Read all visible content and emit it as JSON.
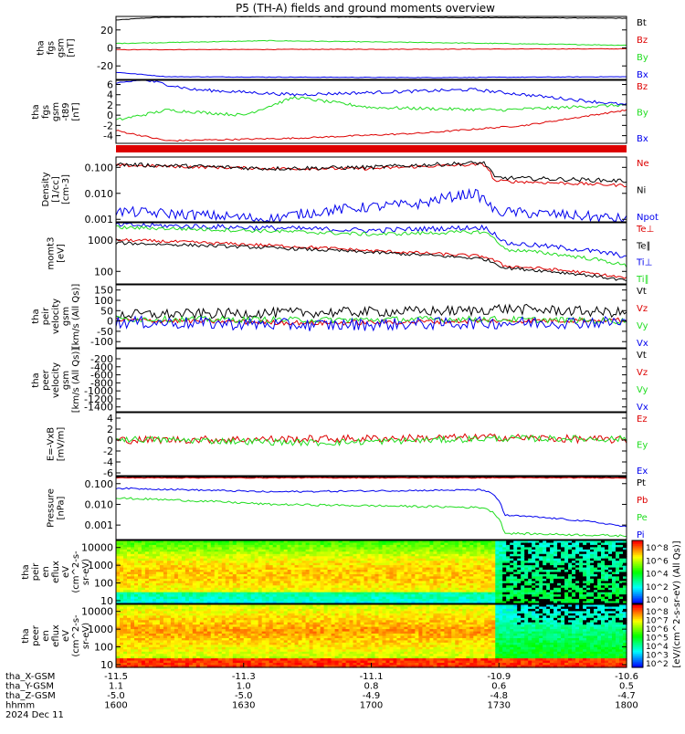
{
  "title": "P5 (TH-A) fields and ground moments overview",
  "colors": {
    "black": "#000000",
    "red": "#dd0000",
    "green": "#22dd22",
    "blue": "#0000ee"
  },
  "chart_data": [
    {
      "type": "line",
      "ylabel_lines": [
        "tha",
        "fgs",
        "gsm",
        "[nT]"
      ],
      "ylim": [
        -35,
        35
      ],
      "yticks": [
        {
          "v": 20,
          "t": "20"
        },
        {
          "v": 0,
          "t": "0"
        },
        {
          "v": -20,
          "t": "-20"
        }
      ],
      "series": [
        {
          "name": "Bt",
          "color": "black",
          "noise": 0.3,
          "levels": [
            [
              0,
              31
            ],
            [
              0.08,
              34
            ],
            [
              0.3,
              35
            ],
            [
              0.6,
              34
            ],
            [
              1,
              33
            ]
          ]
        },
        {
          "name": "Bz",
          "color": "red",
          "noise": 0.3,
          "levels": [
            [
              0,
              -2
            ],
            [
              0.5,
              -1.5
            ],
            [
              1,
              -1
            ]
          ]
        },
        {
          "name": "By",
          "color": "green",
          "noise": 0.4,
          "levels": [
            [
              0,
              5
            ],
            [
              0.3,
              8
            ],
            [
              0.6,
              6
            ],
            [
              1,
              3
            ]
          ]
        },
        {
          "name": "Bx",
          "color": "blue",
          "noise": 0.3,
          "levels": [
            [
              0,
              -27
            ],
            [
              0.1,
              -32
            ],
            [
              0.6,
              -33
            ],
            [
              1,
              -32
            ]
          ]
        }
      ]
    },
    {
      "type": "line",
      "ylabel_lines": [
        "tha",
        "fgs",
        "gsm",
        "-t89",
        "[nT]"
      ],
      "ylim": [
        -5.5,
        6.8
      ],
      "yticks": [
        {
          "v": 6,
          "t": "6"
        },
        {
          "v": 4,
          "t": "4"
        },
        {
          "v": 2,
          "t": "2"
        },
        {
          "v": 0,
          "t": "0"
        },
        {
          "v": -2,
          "t": "-2"
        },
        {
          "v": -4,
          "t": "-4"
        }
      ],
      "series": [
        {
          "name": "Bz",
          "color": "red",
          "noise": 0.15,
          "levels": [
            [
              0,
              -3
            ],
            [
              0.1,
              -5
            ],
            [
              0.35,
              -4.5
            ],
            [
              0.6,
              -3.5
            ],
            [
              0.8,
              -2
            ],
            [
              1,
              1
            ]
          ]
        },
        {
          "name": "By",
          "color": "green",
          "noise": 0.3,
          "levels": [
            [
              0,
              -1
            ],
            [
              0.1,
              1
            ],
            [
              0.25,
              0
            ],
            [
              0.35,
              3.5
            ],
            [
              0.5,
              1.5
            ],
            [
              0.75,
              1
            ],
            [
              1,
              2
            ]
          ]
        },
        {
          "name": "Bx",
          "color": "blue",
          "noise": 0.3,
          "levels": [
            [
              0,
              6
            ],
            [
              0.05,
              7
            ],
            [
              0.15,
              5
            ],
            [
              0.35,
              4
            ],
            [
              0.7,
              5
            ],
            [
              1,
              2
            ]
          ]
        }
      ]
    },
    {
      "type": "line",
      "log": true,
      "ylabel_lines": [
        "Density",
        "[1/cc]",
        "[cm-3]"
      ],
      "ylim": [
        0.0008,
        0.25
      ],
      "yticks": [
        {
          "v": 0.1,
          "t": "0.100"
        },
        {
          "v": 0.01,
          "t": "0.010"
        },
        {
          "v": 0.001,
          "t": "0.001"
        }
      ],
      "series": [
        {
          "name": "Ne",
          "color": "red",
          "noise": 0.06,
          "levels": [
            [
              0,
              0.12
            ],
            [
              0.3,
              0.09
            ],
            [
              0.5,
              0.09
            ],
            [
              0.72,
              0.13
            ],
            [
              0.74,
              0.03
            ],
            [
              1,
              0.02
            ]
          ]
        },
        {
          "name": "Ni",
          "color": "black",
          "noise": 0.08,
          "levels": [
            [
              0,
              0.13
            ],
            [
              0.3,
              0.09
            ],
            [
              0.5,
              0.1
            ],
            [
              0.72,
              0.15
            ],
            [
              0.74,
              0.04
            ],
            [
              1,
              0.03
            ]
          ]
        },
        {
          "name": "Npot",
          "color": "blue",
          "noise": 0.2,
          "levels": [
            [
              0,
              0.002
            ],
            [
              0.3,
              0.001
            ],
            [
              0.6,
              0.004
            ],
            [
              0.7,
              0.01
            ],
            [
              0.74,
              0.002
            ],
            [
              1,
              0.001
            ]
          ]
        }
      ]
    },
    {
      "type": "line",
      "log": true,
      "ylabel_lines": [
        "momt3",
        "[eV]"
      ],
      "ylim": [
        40,
        3500
      ],
      "yticks": [
        {
          "v": 1000,
          "t": "1000"
        },
        {
          "v": 100,
          "t": "100"
        }
      ],
      "series": [
        {
          "name": "Te⊥",
          "color": "red",
          "noise": 0.05,
          "levels": [
            [
              0,
              1000
            ],
            [
              0.5,
              450
            ],
            [
              0.72,
              300
            ],
            [
              0.76,
              150
            ],
            [
              1,
              60
            ]
          ]
        },
        {
          "name": "Te∥",
          "color": "black",
          "noise": 0.05,
          "levels": [
            [
              0,
              800
            ],
            [
              0.5,
              400
            ],
            [
              0.72,
              250
            ],
            [
              0.76,
              130
            ],
            [
              1,
              50
            ]
          ]
        },
        {
          "name": "Ti⊥",
          "color": "blue",
          "noise": 0.08,
          "levels": [
            [
              0,
              3000
            ],
            [
              0.5,
              2000
            ],
            [
              0.72,
              2500
            ],
            [
              0.76,
              800
            ],
            [
              1,
              300
            ]
          ]
        },
        {
          "name": "Ti∥",
          "color": "green",
          "noise": 0.06,
          "levels": [
            [
              0,
              2500
            ],
            [
              0.5,
              1500
            ],
            [
              0.72,
              1800
            ],
            [
              0.76,
              500
            ],
            [
              1,
              150
            ]
          ]
        }
      ]
    },
    {
      "type": "line",
      "ylabel_lines": [
        "tha",
        "peir",
        "velocity",
        "gsm",
        "[km/s (All Qs)]"
      ],
      "ylim": [
        -130,
        175
      ],
      "yticks": [
        {
          "v": 150,
          "t": "150"
        },
        {
          "v": 100,
          "t": "100"
        },
        {
          "v": 50,
          "t": "50"
        },
        {
          "v": 0,
          "t": "0"
        },
        {
          "v": -50,
          "t": "-50"
        },
        {
          "v": -100,
          "t": "-100"
        }
      ],
      "series": [
        {
          "name": "Vt",
          "color": "black",
          "noise": 25,
          "levels": [
            [
              0,
              30
            ],
            [
              0.7,
              50
            ],
            [
              0.75,
              60
            ],
            [
              1,
              40
            ]
          ]
        },
        {
          "name": "Vz",
          "color": "red",
          "noise": 12,
          "levels": [
            [
              0,
              5
            ],
            [
              0.4,
              -10
            ],
            [
              0.7,
              0
            ],
            [
              1,
              5
            ]
          ]
        },
        {
          "name": "Vy",
          "color": "green",
          "noise": 15,
          "levels": [
            [
              0,
              10
            ],
            [
              0.4,
              5
            ],
            [
              0.7,
              10
            ],
            [
              1,
              0
            ]
          ]
        },
        {
          "name": "Vx",
          "color": "blue",
          "noise": 30,
          "levels": [
            [
              0,
              -5
            ],
            [
              0.4,
              -20
            ],
            [
              0.7,
              -10
            ],
            [
              1,
              -5
            ]
          ]
        }
      ]
    },
    {
      "type": "line",
      "ylabel_lines": [
        "tha",
        "peer",
        "velocity",
        "gsm",
        "[km/s (All Qs)]"
      ],
      "ylim": [
        -1520,
        50
      ],
      "yticks": [
        {
          "v": -200,
          "t": "-200"
        },
        {
          "v": -400,
          "t": "-400"
        },
        {
          "v": -600,
          "t": "-600"
        },
        {
          "v": -800,
          "t": "-800"
        },
        {
          "v": -1000,
          "t": "-1000"
        },
        {
          "v": -1200,
          "t": "-1200"
        },
        {
          "v": -1400,
          "t": "-1400"
        }
      ],
      "series": [
        {
          "name": "Vt",
          "color": "black",
          "levels": []
        },
        {
          "name": "Vz",
          "color": "red",
          "levels": []
        },
        {
          "name": "Vy",
          "color": "green",
          "levels": []
        },
        {
          "name": "Vx",
          "color": "blue",
          "levels": []
        }
      ]
    },
    {
      "type": "line",
      "ylabel_lines": [
        "E=-VxB",
        "[mV/m]"
      ],
      "ylim": [
        -6.5,
        5
      ],
      "yticks": [
        {
          "v": 4,
          "t": "4"
        },
        {
          "v": 2,
          "t": "2"
        },
        {
          "v": 0,
          "t": "0"
        },
        {
          "v": -2,
          "t": "-2"
        },
        {
          "v": -4,
          "t": "-4"
        },
        {
          "v": -6,
          "t": "-6"
        }
      ],
      "series": [
        {
          "name": "Ez",
          "color": "red",
          "noise": 0.7,
          "levels": [
            [
              0,
              0
            ],
            [
              0.4,
              0.2
            ],
            [
              0.75,
              0.5
            ],
            [
              1,
              0
            ]
          ]
        },
        {
          "name": "Ey",
          "color": "green",
          "noise": 0.6,
          "levels": [
            [
              0,
              0.2
            ],
            [
              0.4,
              -0.5
            ],
            [
              0.75,
              0.3
            ],
            [
              1,
              0.2
            ]
          ]
        },
        {
          "name": "Ex",
          "color": "blue",
          "levels": []
        }
      ]
    },
    {
      "type": "line",
      "log": true,
      "ylabel_lines": [
        "Pressure",
        "[nPa]"
      ],
      "ylim": [
        0.0002,
        0.22
      ],
      "yticks": [
        {
          "v": 0.1,
          "t": "0.100"
        },
        {
          "v": 0.01,
          "t": "0.010"
        },
        {
          "v": 0.001,
          "t": "0.001"
        }
      ],
      "series": [
        {
          "name": "Pt",
          "color": "black",
          "noise": 0.02,
          "levels": [
            [
              0,
              0.2
            ],
            [
              1,
              0.2
            ]
          ]
        },
        {
          "name": "Pb",
          "color": "red",
          "noise": 0.02,
          "levels": [
            [
              0,
              0.19
            ],
            [
              1,
              0.19
            ]
          ]
        },
        {
          "name": "Pe",
          "color": "green",
          "noise": 0.05,
          "levels": [
            [
              0,
              0.02
            ],
            [
              0.3,
              0.01
            ],
            [
              0.72,
              0.007
            ],
            [
              0.76,
              0.0004
            ],
            [
              1,
              0.0003
            ]
          ]
        },
        {
          "name": "Pi",
          "color": "blue",
          "noise": 0.04,
          "levels": [
            [
              0,
              0.06
            ],
            [
              0.3,
              0.04
            ],
            [
              0.72,
              0.05
            ],
            [
              0.76,
              0.003
            ],
            [
              1,
              0.0008
            ]
          ]
        }
      ]
    },
    {
      "type": "heatmap",
      "ylabel_lines": [
        "tha",
        "peir",
        "en",
        "eflux",
        "eV",
        "(cm^2-s-",
        "sr-eV)"
      ],
      "log": true,
      "ylim": [
        7,
        25000
      ],
      "yticks": [
        {
          "v": 10000,
          "t": "10000"
        },
        {
          "v": 1000,
          "t": "1000"
        },
        {
          "v": 100,
          "t": "100"
        },
        {
          "v": 10,
          "t": "10"
        }
      ],
      "kind": "ion"
    },
    {
      "type": "heatmap",
      "ylabel_lines": [
        "tha",
        "peer",
        "en",
        "eflux",
        "eV",
        "(cm^2-s-",
        "sr-eV)"
      ],
      "log": true,
      "ylim": [
        7,
        25000
      ],
      "yticks": [
        {
          "v": 10000,
          "t": "10000"
        },
        {
          "v": 1000,
          "t": "1000"
        },
        {
          "v": 100,
          "t": "100"
        },
        {
          "v": 10,
          "t": "10"
        }
      ],
      "kind": "electron"
    }
  ],
  "colorbar": {
    "label": "[eV/(cm^2-s-sr-eV) (All Qs)]",
    "ticks_top": [
      "10^8",
      "10^6",
      "10^4",
      "10^2",
      "10^0"
    ],
    "ticks_bottom": [
      "10^8",
      "10^7",
      "10^6",
      "10^5",
      "10^4",
      "10^3",
      "10^2"
    ]
  },
  "xaxis": {
    "ticks": [
      "-11.5",
      "-11.3",
      "-11.1",
      "-10.9",
      "-10.6"
    ],
    "rows": [
      {
        "label": "tha_X-GSM",
        "values": [
          "-11.5",
          "-11.3",
          "-11.1",
          "-10.9",
          "-10.6"
        ]
      },
      {
        "label": "tha_Y-GSM",
        "values": [
          "1.1",
          "1.0",
          "0.8",
          "0.6",
          "0.5"
        ]
      },
      {
        "label": "tha_Z-GSM",
        "values": [
          "-5.0",
          "-5.0",
          "-4.9",
          "-4.8",
          "-4.7"
        ]
      },
      {
        "label": "hhmm",
        "values": [
          "1600",
          "1630",
          "1700",
          "1730",
          "1800"
        ]
      }
    ],
    "date": "2024 Dec 11"
  }
}
